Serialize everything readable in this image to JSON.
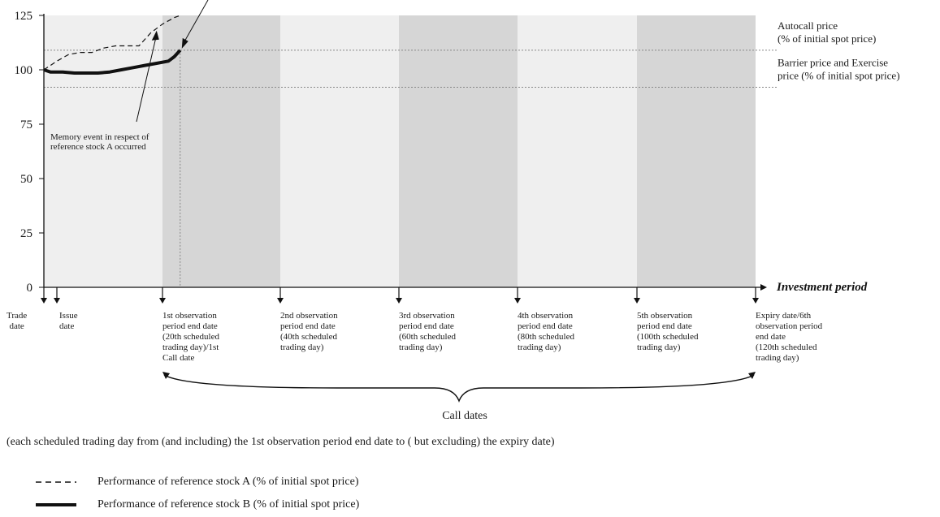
{
  "chart_data": {
    "type": "line",
    "ylim": [
      0,
      125
    ],
    "yticks": [
      "0",
      "25",
      "50",
      "75",
      "100",
      "125"
    ],
    "x_axis_label": "Investment period",
    "series": [
      {
        "name": "Performance of reference stock A (% of initial spot price)",
        "style": "dashed",
        "x": [
          0,
          2,
          4,
          6,
          8,
          10,
          12,
          14,
          16,
          18,
          20,
          22,
          23
        ],
        "y": [
          100,
          104,
          107,
          108,
          108,
          110,
          111,
          111,
          111,
          117,
          121,
          124,
          125
        ]
      },
      {
        "name": "Performance of reference stock B (% of initial spot price)",
        "style": "solid",
        "x": [
          0,
          1,
          3,
          5,
          7,
          9,
          11,
          13,
          15,
          17,
          19,
          21,
          22,
          23
        ],
        "y": [
          100,
          99,
          99,
          98.5,
          98.5,
          98.5,
          99,
          100,
          101,
          102,
          103,
          104,
          106,
          109
        ]
      }
    ],
    "horizontal_lines": [
      {
        "label": "Autocall price\n(% of initial spot price)",
        "y": 109
      },
      {
        "label": "Barrier price and Exercise\nprice (% of initial spot price)",
        "y": 92
      }
    ],
    "observation_days": [
      20,
      40,
      60,
      80,
      100,
      120
    ],
    "annotations": {
      "memory_event": "Memory event in respect of\nreference stock A occurred"
    },
    "dates": [
      {
        "day": 0,
        "label": "Trade\ndate"
      },
      {
        "day": 2,
        "label": "Issue\ndate"
      },
      {
        "day": 20,
        "label": "1st observation\nperiod end date\n(20th scheduled\ntrading day)/1st\nCall date"
      },
      {
        "day": 40,
        "label": "2nd observation\nperiod end date\n(40th scheduled\ntrading day)"
      },
      {
        "day": 60,
        "label": "3rd observation\nperiod end date\n(60th scheduled\ntrading day)"
      },
      {
        "day": 80,
        "label": "4th observation\nperiod end date\n(80th scheduled\ntrading day)"
      },
      {
        "day": 100,
        "label": "5th observation\nperiod end date\n(100th scheduled\ntrading day)"
      },
      {
        "day": 120,
        "label": "Expiry date/6th\nobservation period\nend date\n(120th scheduled\ntrading day)"
      }
    ]
  },
  "call_dates": {
    "title": "Call dates",
    "description": "(each scheduled trading day from (and including) the 1st observation period end date to ( but excluding) the expiry date)"
  },
  "legend": [
    {
      "style": "dashed",
      "label": "Performance of reference stock A (% of initial spot price)"
    },
    {
      "style": "solid",
      "label": "Performance of reference stock B (% of initial spot price)"
    }
  ],
  "colors": {
    "band_light": "#efefef",
    "band_dark": "#d6d6d6",
    "line": "#111111",
    "ref_line": "#888888"
  }
}
